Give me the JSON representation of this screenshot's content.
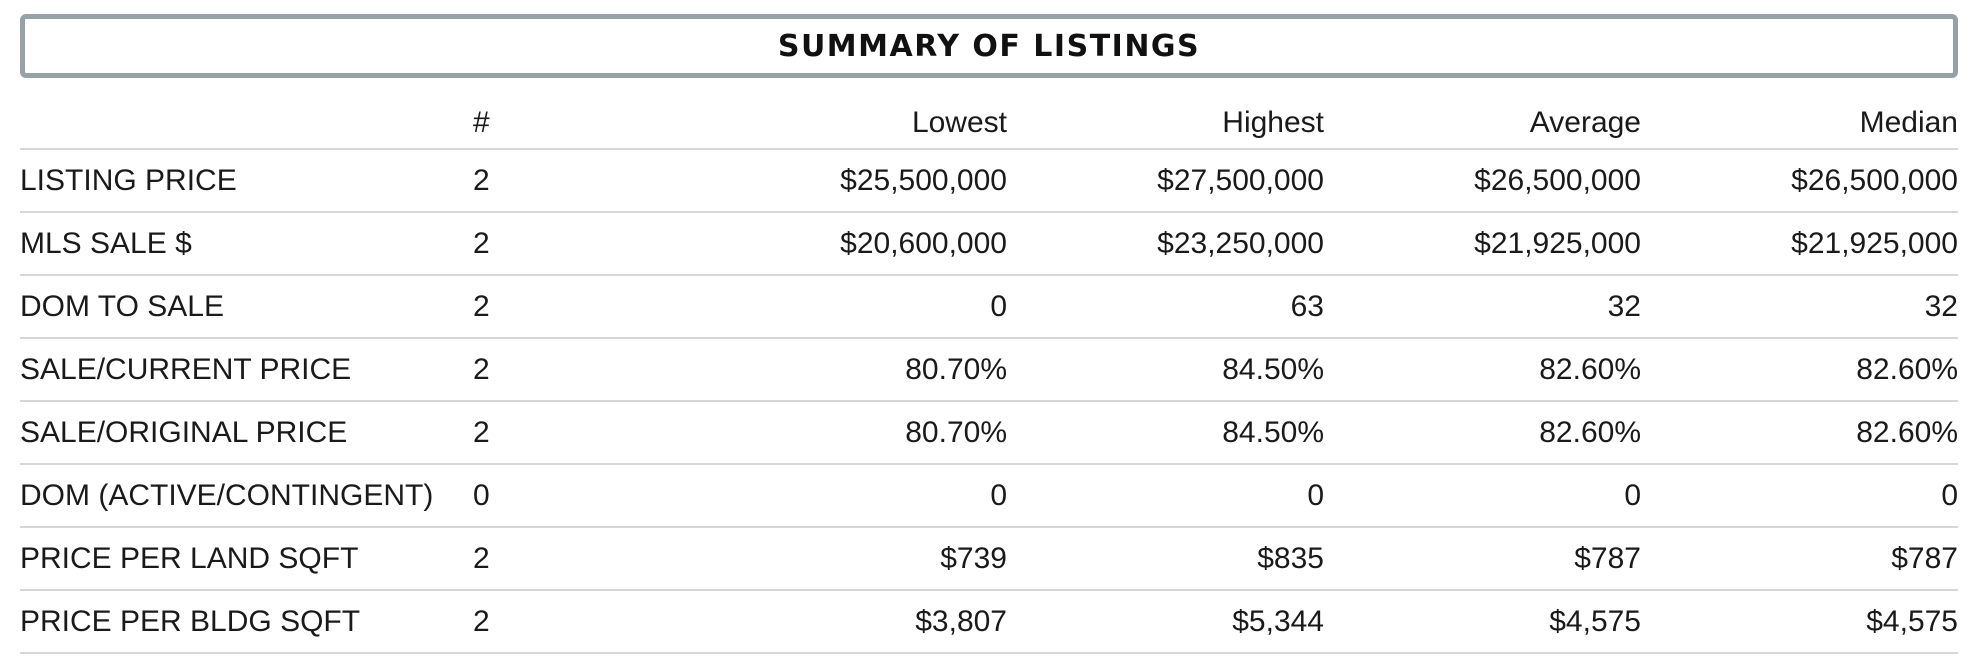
{
  "title": "SUMMARY OF LISTINGS",
  "columns": [
    "",
    "#",
    "Lowest",
    "Highest",
    "Average",
    "Median"
  ],
  "rows": [
    {
      "label": "LISTING PRICE",
      "count": "2",
      "lowest": "$25,500,000",
      "highest": "$27,500,000",
      "average": "$26,500,000",
      "median": "$26,500,000"
    },
    {
      "label": "MLS SALE $",
      "count": "2",
      "lowest": "$20,600,000",
      "highest": "$23,250,000",
      "average": "$21,925,000",
      "median": "$21,925,000"
    },
    {
      "label": "DOM TO SALE",
      "count": "2",
      "lowest": "0",
      "highest": "63",
      "average": "32",
      "median": "32"
    },
    {
      "label": "SALE/CURRENT PRICE",
      "count": "2",
      "lowest": "80.70%",
      "highest": "84.50%",
      "average": "82.60%",
      "median": "82.60%"
    },
    {
      "label": "SALE/ORIGINAL PRICE",
      "count": "2",
      "lowest": "80.70%",
      "highest": "84.50%",
      "average": "82.60%",
      "median": "82.60%"
    },
    {
      "label": "DOM (ACTIVE/CONTINGENT)",
      "count": "0",
      "lowest": "0",
      "highest": "0",
      "average": "0",
      "median": "0"
    },
    {
      "label": "PRICE PER LAND SQFT",
      "count": "2",
      "lowest": "$739",
      "highest": "$835",
      "average": "$787",
      "median": "$787"
    },
    {
      "label": "PRICE PER BLDG SQFT",
      "count": "2",
      "lowest": "$3,807",
      "highest": "$5,344",
      "average": "$4,575",
      "median": "$4,575"
    }
  ],
  "colors": {
    "title_border": "#97a2a8",
    "row_divider": "#d7d7d7",
    "text": "#1a1a1a"
  }
}
